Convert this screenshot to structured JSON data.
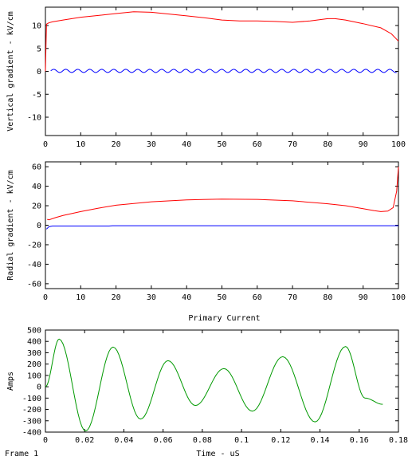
{
  "frame_label": "Frame 1",
  "chart_data": [
    {
      "type": "line",
      "title": "",
      "xlabel": "",
      "ylabel": "Vertical gradient - kV/cm",
      "xlim": [
        0,
        100
      ],
      "ylim": [
        -14,
        14
      ],
      "xticks": [
        0,
        10,
        20,
        30,
        40,
        50,
        60,
        70,
        80,
        90,
        100
      ],
      "yticks": [
        -10,
        -5,
        0,
        5,
        10
      ],
      "series": [
        {
          "color": "#ff0000",
          "x": [
            0,
            0.3,
            1,
            2,
            5,
            10,
            15,
            20,
            25,
            30,
            35,
            40,
            45,
            50,
            55,
            60,
            65,
            70,
            75,
            80,
            82,
            85,
            90,
            95,
            98,
            100
          ],
          "y": [
            0,
            10.3,
            10.6,
            10.8,
            11.2,
            11.8,
            12.2,
            12.6,
            13.0,
            12.9,
            12.5,
            12.1,
            11.7,
            11.2,
            11.0,
            11.0,
            10.9,
            10.7,
            11.0,
            11.5,
            11.5,
            11.2,
            10.4,
            9.5,
            8.2,
            6.6
          ]
        },
        {
          "color": "#0000ff",
          "wave": {
            "mean": 0.1,
            "amp": 0.35,
            "period": 3.4,
            "x0": 1.5,
            "x1": 99.5
          },
          "x": [],
          "y": []
        }
      ]
    },
    {
      "type": "line",
      "title": "",
      "xlabel": "",
      "ylabel": "Radial gradient - kV/cm",
      "xlim": [
        0,
        100
      ],
      "ylim": [
        -65,
        65
      ],
      "xticks": [
        0,
        10,
        20,
        30,
        40,
        50,
        60,
        70,
        80,
        90,
        100
      ],
      "yticks": [
        -60,
        -40,
        -20,
        0,
        20,
        40,
        60
      ],
      "series": [
        {
          "color": "#ff0000",
          "x": [
            0.5,
            1,
            3,
            5,
            10,
            15,
            20,
            30,
            40,
            50,
            60,
            70,
            80,
            85,
            90,
            93,
            95,
            97,
            98.5,
            99.5,
            100
          ],
          "y": [
            6,
            5.5,
            8,
            10,
            14,
            17.5,
            20.5,
            24,
            26,
            26.8,
            26.5,
            25,
            22,
            20,
            17,
            15,
            14,
            14.5,
            18,
            35,
            60
          ]
        },
        {
          "color": "#0000ff",
          "x": [
            0.3,
            1,
            2,
            4,
            18,
            19,
            100
          ],
          "y": [
            -4,
            -1.5,
            -0.8,
            -0.8,
            -0.8,
            -0.5,
            -0.5
          ]
        }
      ]
    },
    {
      "type": "line",
      "title": "Primary Current",
      "xlabel": "Time - uS",
      "ylabel": "Amps",
      "xlim": [
        0,
        0.18
      ],
      "ylim": [
        -400,
        500
      ],
      "xticks": [
        0,
        0.02,
        0.04,
        0.06,
        0.08,
        0.1,
        0.12,
        0.14,
        0.16,
        0.18
      ],
      "yticks": [
        -400,
        -300,
        -200,
        -100,
        0,
        100,
        200,
        300,
        400,
        500
      ],
      "series": [
        {
          "color": "#009900",
          "x": [
            0,
            0.007,
            0.0205,
            0.0345,
            0.0485,
            0.0625,
            0.0765,
            0.091,
            0.1055,
            0.121,
            0.1375,
            0.153,
            0.163,
            0.172
          ],
          "y": [
            0,
            420,
            -390,
            350,
            -285,
            230,
            -165,
            160,
            -215,
            265,
            -310,
            355,
            -100,
            -155
          ]
        }
      ]
    }
  ]
}
